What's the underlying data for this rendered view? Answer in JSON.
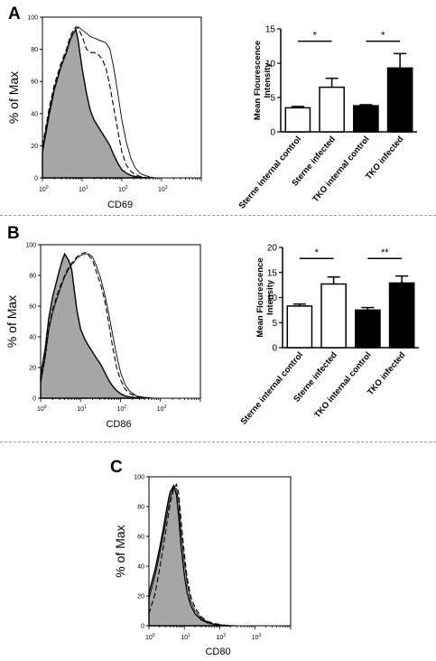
{
  "panels": [
    {
      "letter": "A"
    },
    {
      "letter": "B"
    },
    {
      "letter": "C"
    }
  ],
  "chart_data": [
    {
      "type": "area",
      "panel": "A",
      "xlabel": "CD69",
      "ylabel": "% of Max",
      "xscale": "log",
      "xlim": [
        1,
        10000
      ],
      "ylim": [
        0,
        100
      ],
      "xticks": [
        "10^0",
        "10^1",
        "10^2",
        "10^3"
      ],
      "yticks": [
        0,
        20,
        40,
        60,
        80,
        100
      ],
      "series": [
        {
          "style": "filled-gray",
          "x": [
            1,
            1.5,
            2,
            3,
            4,
            5,
            6,
            7,
            8,
            10,
            13,
            16,
            20,
            25,
            32,
            40,
            50,
            63,
            80,
            100,
            130,
            170,
            220,
            300,
            500
          ],
          "y": [
            16,
            40,
            55,
            70,
            78,
            86,
            90,
            92,
            85,
            68,
            52,
            42,
            36,
            32,
            28,
            24,
            20,
            14,
            9,
            5,
            3,
            1.5,
            0.8,
            0.3,
            0
          ]
        },
        {
          "style": "dashed",
          "x": [
            1,
            1.5,
            2,
            3,
            4,
            5,
            6,
            7,
            8,
            10,
            13,
            16,
            20,
            25,
            32,
            40,
            50,
            63,
            80,
            100,
            130,
            170,
            220,
            300,
            500
          ],
          "y": [
            20,
            44,
            58,
            72,
            80,
            88,
            92,
            94,
            93,
            88,
            80,
            78,
            78,
            77,
            74,
            68,
            57,
            43,
            29,
            16,
            8,
            4,
            2,
            0.8,
            0
          ]
        },
        {
          "style": "solid",
          "x": [
            1,
            1.5,
            2,
            3,
            4,
            5,
            6,
            7,
            8,
            10,
            13,
            16,
            20,
            25,
            32,
            40,
            50,
            63,
            80,
            100,
            130,
            170,
            220,
            300,
            500,
            700
          ],
          "y": [
            18,
            42,
            56,
            70,
            78,
            86,
            90,
            93,
            94,
            92,
            90,
            88,
            87,
            86,
            85,
            84,
            80,
            68,
            52,
            36,
            22,
            12,
            6,
            2.5,
            0.5,
            0
          ]
        }
      ]
    },
    {
      "type": "bar",
      "panel": "A",
      "ylabel": "Mean Flourescence Intensity",
      "ylim": [
        0,
        15
      ],
      "yticks": [
        0,
        5,
        10,
        15
      ],
      "categories": [
        "Sterne internal control",
        "Sterne infected",
        "TKO internal control",
        "TKO infected"
      ],
      "values": [
        3.5,
        6.5,
        3.8,
        9.3
      ],
      "errors": [
        0.2,
        1.3,
        0.15,
        2.1
      ],
      "fills": [
        "#ffffff",
        "#ffffff",
        "#000000",
        "#000000"
      ],
      "significance": [
        {
          "from": 0,
          "to": 1,
          "label": "*",
          "y": 13.2
        },
        {
          "from": 2,
          "to": 3,
          "label": "*",
          "y": 13.2
        }
      ]
    },
    {
      "type": "area",
      "panel": "B",
      "xlabel": "CD86",
      "ylabel": "% of Max",
      "xscale": "log",
      "xlim": [
        1,
        10000
      ],
      "ylim": [
        0,
        100
      ],
      "xticks": [
        "10^0",
        "10^1",
        "10^2",
        "10^3"
      ],
      "yticks": [
        0,
        20,
        40,
        60,
        80,
        100
      ],
      "series": [
        {
          "style": "filled-gray",
          "x": [
            1,
            1.3,
            1.6,
            2,
            2.5,
            3,
            3.5,
            4,
            5,
            6,
            7,
            8,
            10,
            13,
            16,
            20,
            25,
            32,
            40,
            50,
            63,
            80,
            100,
            130,
            170,
            250,
            400
          ],
          "y": [
            15,
            32,
            52,
            66,
            76,
            84,
            90,
            94,
            90,
            84,
            70,
            58,
            45,
            38,
            34,
            30,
            26,
            22,
            17,
            12,
            8,
            5,
            3,
            1.5,
            0.8,
            0.3,
            0
          ]
        },
        {
          "style": "dashed",
          "x": [
            1,
            1.3,
            1.6,
            2,
            2.5,
            3,
            3.5,
            4,
            5,
            6,
            7,
            8,
            10,
            13,
            16,
            20,
            25,
            32,
            40,
            50,
            63,
            80,
            100,
            130,
            170,
            250,
            400,
            700
          ],
          "y": [
            10,
            28,
            46,
            58,
            66,
            72,
            76,
            80,
            85,
            88,
            90,
            92,
            94,
            95,
            93,
            90,
            82,
            74,
            64,
            50,
            34,
            20,
            12,
            6,
            3,
            1.2,
            0.4,
            0
          ]
        },
        {
          "style": "solid",
          "x": [
            1,
            1.3,
            1.6,
            2,
            2.5,
            3,
            3.5,
            4,
            5,
            6,
            7,
            8,
            10,
            13,
            16,
            20,
            25,
            32,
            40,
            50,
            63,
            80,
            100,
            130,
            170,
            250,
            400,
            700
          ],
          "y": [
            10,
            26,
            44,
            56,
            64,
            70,
            75,
            79,
            84,
            87,
            89,
            91,
            93,
            94,
            94,
            92,
            86,
            78,
            68,
            56,
            42,
            28,
            17,
            9,
            4.5,
            1.5,
            0.5,
            0
          ]
        }
      ]
    },
    {
      "type": "bar",
      "panel": "B",
      "ylabel": "Mean Flourescence Intensity",
      "ylim": [
        0,
        20
      ],
      "yticks": [
        0,
        5,
        10,
        15,
        20
      ],
      "categories": [
        "Sterne internal control",
        "Sterne infected",
        "TKO internal control",
        "TKO infected"
      ],
      "values": [
        8.3,
        12.7,
        7.5,
        12.9
      ],
      "errors": [
        0.4,
        1.4,
        0.5,
        1.4
      ],
      "fills": [
        "#ffffff",
        "#ffffff",
        "#000000",
        "#000000"
      ],
      "significance": [
        {
          "from": 0,
          "to": 1,
          "label": "*",
          "y": 17.8
        },
        {
          "from": 2,
          "to": 3,
          "label": "**",
          "y": 17.8
        }
      ]
    },
    {
      "type": "area",
      "panel": "C",
      "xlabel": "CD80",
      "ylabel": "% of Max",
      "xscale": "log",
      "xlim": [
        1,
        10000
      ],
      "ylim": [
        0,
        100
      ],
      "xticks": [
        "10^0",
        "10^1",
        "10^2",
        "10^3"
      ],
      "yticks": [
        0,
        20,
        40,
        60,
        80,
        100
      ],
      "series": [
        {
          "style": "filled-gray",
          "x": [
            1,
            1.5,
            2,
            2.5,
            3,
            3.5,
            4,
            5,
            6,
            7,
            8,
            10,
            12,
            15,
            20,
            30,
            45,
            70,
            120,
            200
          ],
          "y": [
            22,
            38,
            52,
            64,
            75,
            84,
            90,
            94,
            88,
            72,
            55,
            34,
            22,
            14,
            8,
            4,
            2,
            1,
            0.3,
            0
          ]
        },
        {
          "style": "dashed",
          "x": [
            1,
            1.5,
            2,
            2.5,
            3,
            3.5,
            4,
            5,
            6,
            7,
            8,
            10,
            12,
            15,
            20,
            30,
            45,
            70,
            120,
            200,
            300
          ],
          "y": [
            8,
            22,
            38,
            52,
            64,
            74,
            82,
            92,
            95,
            88,
            72,
            48,
            32,
            20,
            12,
            6,
            3,
            1.5,
            0.6,
            0.2,
            0
          ]
        },
        {
          "style": "solid",
          "x": [
            1,
            1.5,
            2,
            2.5,
            3,
            3.5,
            4,
            5,
            6,
            7,
            8,
            10,
            12,
            15,
            20,
            30,
            45,
            70,
            120,
            200
          ],
          "y": [
            18,
            34,
            48,
            60,
            70,
            79,
            86,
            93,
            92,
            82,
            64,
            42,
            28,
            17,
            10,
            5,
            2.5,
            1,
            0.3,
            0
          ]
        }
      ]
    }
  ]
}
